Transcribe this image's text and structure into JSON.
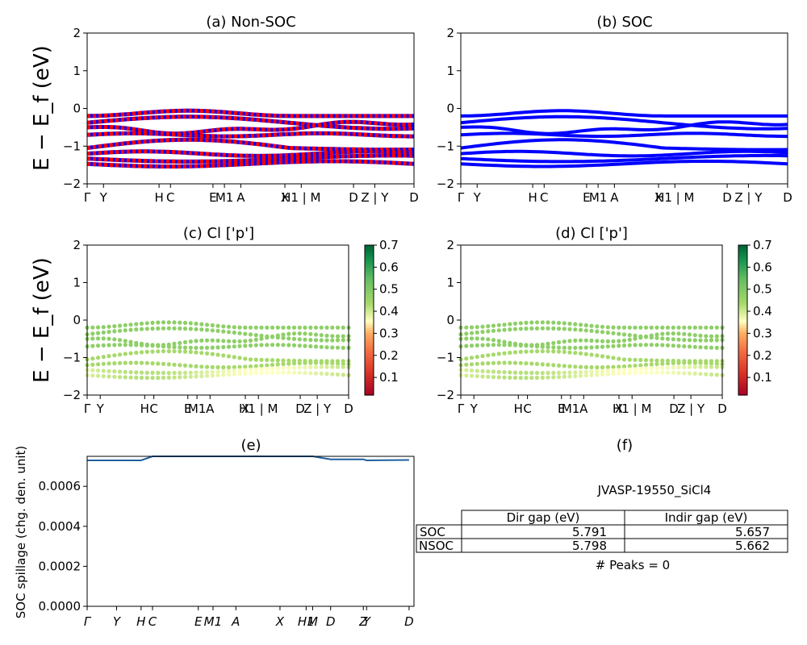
{
  "chart_data": [
    {
      "id": "a",
      "type": "line",
      "title": "(a) Non-SOC",
      "ylabel": "E − E_f (eV)",
      "ylim": [
        -2,
        2
      ],
      "yticks": [
        "2",
        "1",
        "0",
        "−1",
        "−2"
      ],
      "xticks": [
        "Γ",
        "Y",
        "H",
        "C",
        "E",
        "M1",
        "A",
        "X",
        "H1 | M",
        "D",
        "Z | Y",
        "D"
      ],
      "series_colors": [
        "#ff0000",
        "#0000ff"
      ],
      "bands": [
        -0.12,
        -0.3,
        -0.48,
        -0.62,
        -1.05,
        -1.18,
        -1.33,
        -1.45
      ]
    },
    {
      "id": "b",
      "type": "line",
      "title": "(b) SOC",
      "ylim": [
        -2,
        2
      ],
      "yticks": [
        "2",
        "1",
        "0",
        "−1",
        "−2"
      ],
      "xticks": [
        "Γ",
        "Y",
        "H",
        "C",
        "E",
        "M1",
        "A",
        "X",
        "H1 | M",
        "D",
        "Z | Y",
        "D"
      ],
      "series_colors": [
        "#0000ff"
      ],
      "bands": [
        -0.12,
        -0.3,
        -0.48,
        -0.62,
        -1.05,
        -1.18,
        -1.33,
        -1.45
      ]
    },
    {
      "id": "c",
      "type": "scatter",
      "title": "(c)  Cl ['p']",
      "ylabel": "E − E_f (eV)",
      "ylim": [
        -2,
        2
      ],
      "yticks": [
        "2",
        "1",
        "0",
        "−1",
        "−2"
      ],
      "xticks": [
        "Γ",
        "Y",
        "H",
        "C",
        "E",
        "M1",
        "A",
        "X",
        "H1 | M",
        "D",
        "Z | Y",
        "D"
      ],
      "colorbar_ticks": [
        "0.7",
        "0.6",
        "0.5",
        "0.4",
        "0.3",
        "0.2",
        "0.1"
      ],
      "colorbar_range": [
        0.02,
        0.7
      ],
      "bands": [
        -0.12,
        -0.3,
        -0.48,
        -0.62,
        -1.05,
        -1.18,
        -1.33,
        -1.45
      ]
    },
    {
      "id": "d",
      "type": "scatter",
      "title": "(d) Cl ['p']",
      "ylim": [
        -2,
        2
      ],
      "yticks": [
        "2",
        "1",
        "0",
        "−1",
        "−2"
      ],
      "xticks": [
        "Γ",
        "Y",
        "H",
        "C",
        "E",
        "M1",
        "A",
        "X",
        "H1 | M",
        "D",
        "Z | Y",
        "D"
      ],
      "colorbar_ticks": [
        "0.7",
        "0.6",
        "0.5",
        "0.4",
        "0.3",
        "0.2",
        "0.1"
      ],
      "colorbar_range": [
        0.02,
        0.7
      ],
      "bands": [
        -0.12,
        -0.3,
        -0.48,
        -0.62,
        -1.05,
        -1.18,
        -1.33,
        -1.45
      ]
    },
    {
      "id": "e",
      "type": "line",
      "title": "(e)",
      "ylabel": "SOC spillage (chg. den. unit)",
      "ylim": [
        0,
        0.00075
      ],
      "yticks": [
        "0.0006",
        "0.0004",
        "0.0002",
        "0.0000"
      ],
      "xticks": [
        "Γ",
        "Y",
        "H",
        "C",
        "E",
        "M1",
        "A",
        "X",
        "H1",
        "M",
        "D",
        "Z",
        "Y",
        "D"
      ],
      "series": [
        {
          "values": [
            0.00073,
            0.00073,
            0.00073,
            0.00075,
            0.00075,
            0.00075,
            0.00075,
            0.00075,
            0.00075,
            0.00075,
            0.000735,
            0.000735,
            0.00073,
            0.000732
          ]
        }
      ]
    },
    {
      "id": "f",
      "type": "table",
      "title": "(f)",
      "subtitle": "JVASP-19550_SiCl4",
      "columns": [
        "Dir gap (eV)",
        "Indir gap (eV)"
      ],
      "rows": [
        {
          "label": "SOC",
          "values": [
            "5.791",
            "5.657"
          ]
        },
        {
          "label": "NSOC",
          "values": [
            "5.798",
            "5.662"
          ]
        }
      ],
      "footer": "# Peaks = 0"
    }
  ]
}
